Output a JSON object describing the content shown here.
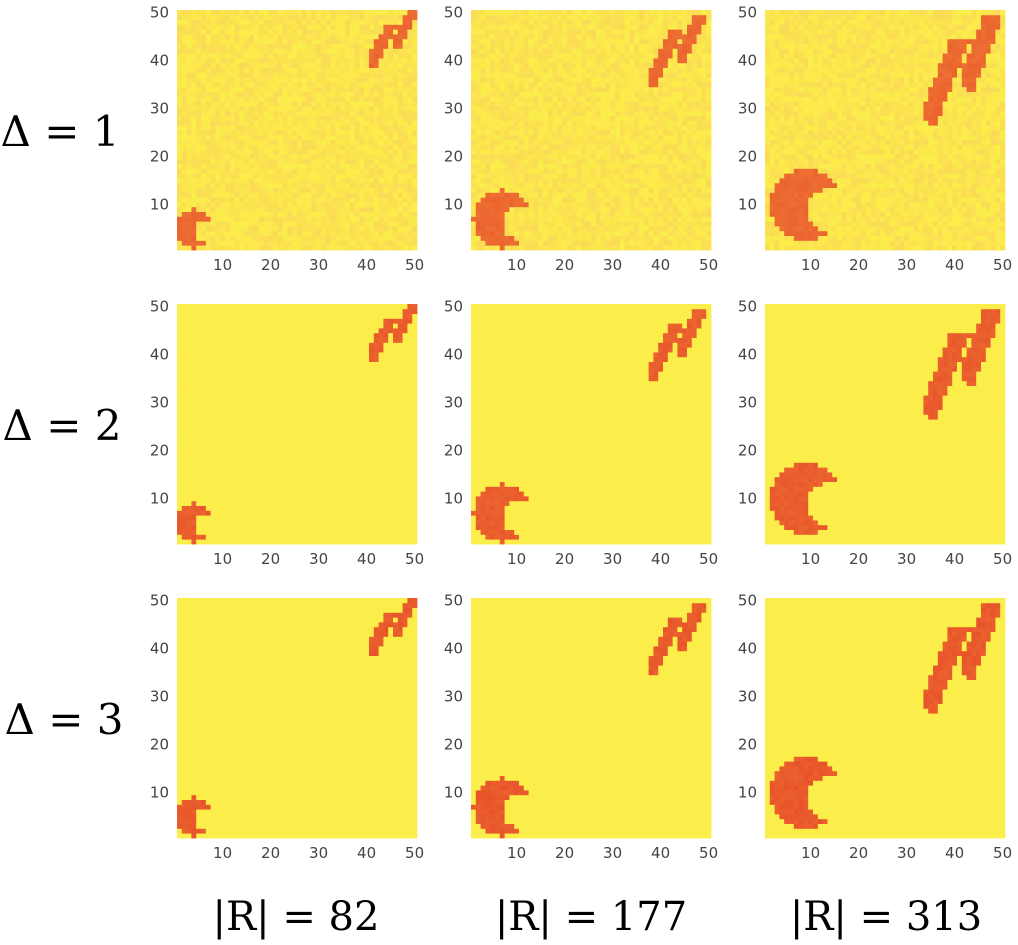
{
  "chart_data": {
    "type": "heatmap",
    "layout": "3x3 grid of heatmap panels",
    "row_labels": [
      "Δ = 1",
      "Δ = 2",
      "Δ = 3"
    ],
    "column_labels": [
      "|R| = 82",
      "|R| = 177",
      "|R| = 313"
    ],
    "x_ticks": [
      "10",
      "20",
      "30",
      "40",
      "50"
    ],
    "y_ticks": [
      "10",
      "20",
      "30",
      "40",
      "50"
    ],
    "xlim": [
      1,
      50
    ],
    "ylim": [
      1,
      50
    ],
    "grid_resolution": 50,
    "colors": {
      "background": "#fcee4a",
      "noise": "#f9d25a",
      "region_fill": "#e8542a",
      "region_mid": "#ef7a36"
    },
    "regions": {
      "crescent": {
        "description": "crescent-shaped region near the lower-left corner",
        "center_x_by_column": [
          4,
          7,
          9
        ],
        "center_y_by_column": [
          5,
          7,
          10
        ],
        "radius_by_column": [
          4,
          6,
          7.5
        ]
      },
      "upper_right_leaves": {
        "description": "two adjacent leaf-shaped regions near the upper-right corner",
        "x_range_by_column": [
          [
            40,
            50
          ],
          [
            37,
            49
          ],
          [
            33,
            49
          ]
        ],
        "y_range_by_column": [
          [
            39,
            50
          ],
          [
            35,
            49
          ],
          [
            27,
            49
          ]
        ]
      }
    },
    "noise_level_by_row": [
      0.55,
      0.08,
      0.04
    ],
    "region_intensity_by_row": [
      0.45,
      0.75,
      0.85
    ],
    "panels": [
      {
        "row": 1,
        "col": 1
      },
      {
        "row": 1,
        "col": 2
      },
      {
        "row": 1,
        "col": 3
      },
      {
        "row": 2,
        "col": 1
      },
      {
        "row": 2,
        "col": 2
      },
      {
        "row": 2,
        "col": 3
      },
      {
        "row": 3,
        "col": 1
      },
      {
        "row": 3,
        "col": 2
      },
      {
        "row": 3,
        "col": 3
      }
    ]
  }
}
